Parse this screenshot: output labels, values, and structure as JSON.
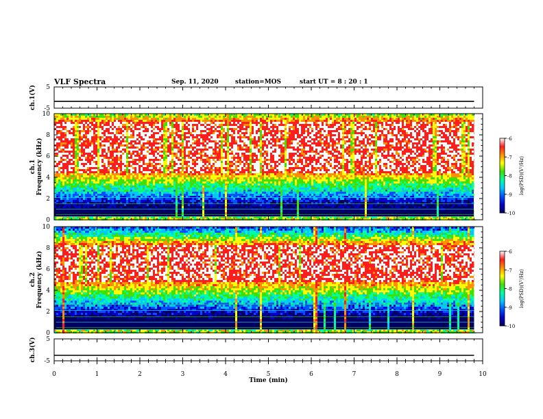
{
  "header": {
    "title": "VLF Spectra",
    "date": "Sep. 11, 2020",
    "station": "station=MOS",
    "start_ut": "start UT =  8 : 20 : 1"
  },
  "chart_data": [
    {
      "type": "line",
      "panel": "ch1-waveform",
      "ylabel": "ch.1(V)",
      "ylim": [
        -5,
        5
      ],
      "yticks": [
        "5",
        "-5"
      ],
      "series": [
        {
          "values_approx_constant": -1.8
        }
      ]
    },
    {
      "type": "heatmap",
      "panel": "ch1-spectrogram",
      "ylabel": "ch.1 Frequency (kHz)",
      "ylim": [
        0,
        10
      ],
      "yticks": [
        "0",
        "2",
        "4",
        "6",
        "8",
        "10"
      ],
      "xlim": [
        0,
        10
      ],
      "intense_band_khz": [
        4.5,
        9.3
      ],
      "colorbar": {
        "label": "log(PSD)(V²/Hz)",
        "ticks": [
          "-6",
          "-7",
          "-8",
          "-9",
          "-10"
        ],
        "range": [
          -10,
          -6
        ]
      }
    },
    {
      "type": "heatmap",
      "panel": "ch2-spectrogram",
      "ylabel": "ch.2 Frequency (kHz)",
      "ylim": [
        0,
        10
      ],
      "yticks": [
        "0",
        "2",
        "4",
        "6",
        "8",
        "10"
      ],
      "xlim": [
        0,
        10
      ],
      "intense_band_khz": [
        4.8,
        8.3
      ],
      "colorbar": {
        "label": "log(PSD)(V²/Hz)",
        "ticks": [
          "-6",
          "-7",
          "-8",
          "-9",
          "-10"
        ],
        "range": [
          -10,
          -6
        ]
      }
    },
    {
      "type": "line",
      "panel": "ch3-waveform",
      "ylabel": "ch.3(V)",
      "ylim": [
        -5,
        5
      ],
      "yticks": [
        "5",
        "-5"
      ],
      "series": [
        {
          "values_approx_constant": -2.5
        }
      ]
    }
  ],
  "x_axis": {
    "label": "Time  (min)",
    "ticks": [
      "0",
      "1",
      "2",
      "3",
      "4",
      "5",
      "6",
      "7",
      "8",
      "9",
      "10"
    ],
    "range": [
      0,
      10
    ],
    "data_end": 9.8
  },
  "colors": {
    "background": "#ffffff",
    "colormap": [
      "#000060",
      "#0000c8",
      "#0050ff",
      "#00c8ff",
      "#00ffa0",
      "#40e000",
      "#ffff00",
      "#ff9000",
      "#ff1e1e",
      "#ffffff"
    ]
  }
}
